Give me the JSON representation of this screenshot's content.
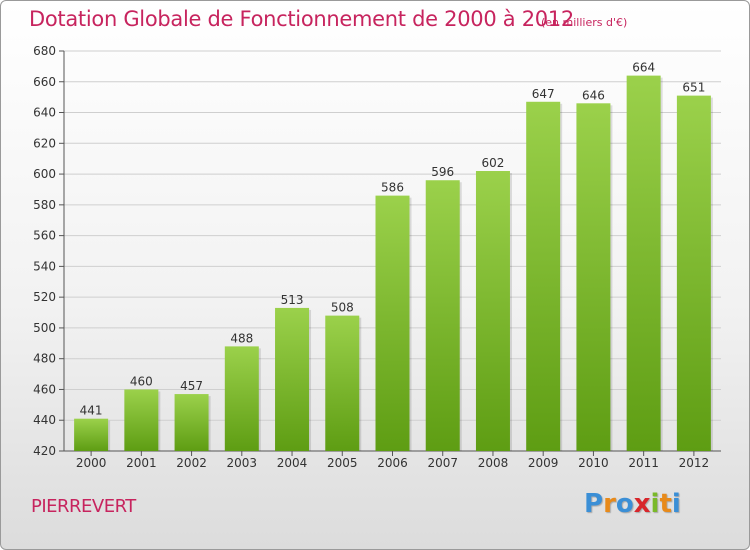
{
  "header": {
    "title": "Dotation Globale de Fonctionnement de 2000 à 2012",
    "unit": "(en milliers d'€)"
  },
  "footer": {
    "place": "PIERREVERT",
    "logo": [
      "P",
      "r",
      "o",
      "x",
      "i",
      "t",
      "i"
    ],
    "logo_colors": [
      "#3b8fd6",
      "#e88a1a",
      "#3b8fd6",
      "#d8262b",
      "#7ab929",
      "#e88a1a",
      "#3b8fd6"
    ]
  },
  "colors": {
    "bar_light": "#9bd14b",
    "bar_dark": "#5e9d13",
    "grid": "#cfcfcf"
  },
  "chart_data": {
    "type": "bar",
    "title": "Dotation Globale de Fonctionnement de 2000 à 2012",
    "subtitle": "(en milliers d'€)",
    "categories": [
      "2000",
      "2001",
      "2002",
      "2003",
      "2004",
      "2005",
      "2006",
      "2007",
      "2008",
      "2009",
      "2010",
      "2011",
      "2012"
    ],
    "values": [
      441,
      460,
      457,
      488,
      513,
      508,
      586,
      596,
      602,
      647,
      646,
      664,
      651
    ],
    "ylim": [
      420,
      680
    ],
    "yticks": [
      420,
      440,
      460,
      480,
      500,
      520,
      540,
      560,
      580,
      600,
      620,
      640,
      660,
      680
    ],
    "grid": true,
    "xlabel": "",
    "ylabel": ""
  }
}
